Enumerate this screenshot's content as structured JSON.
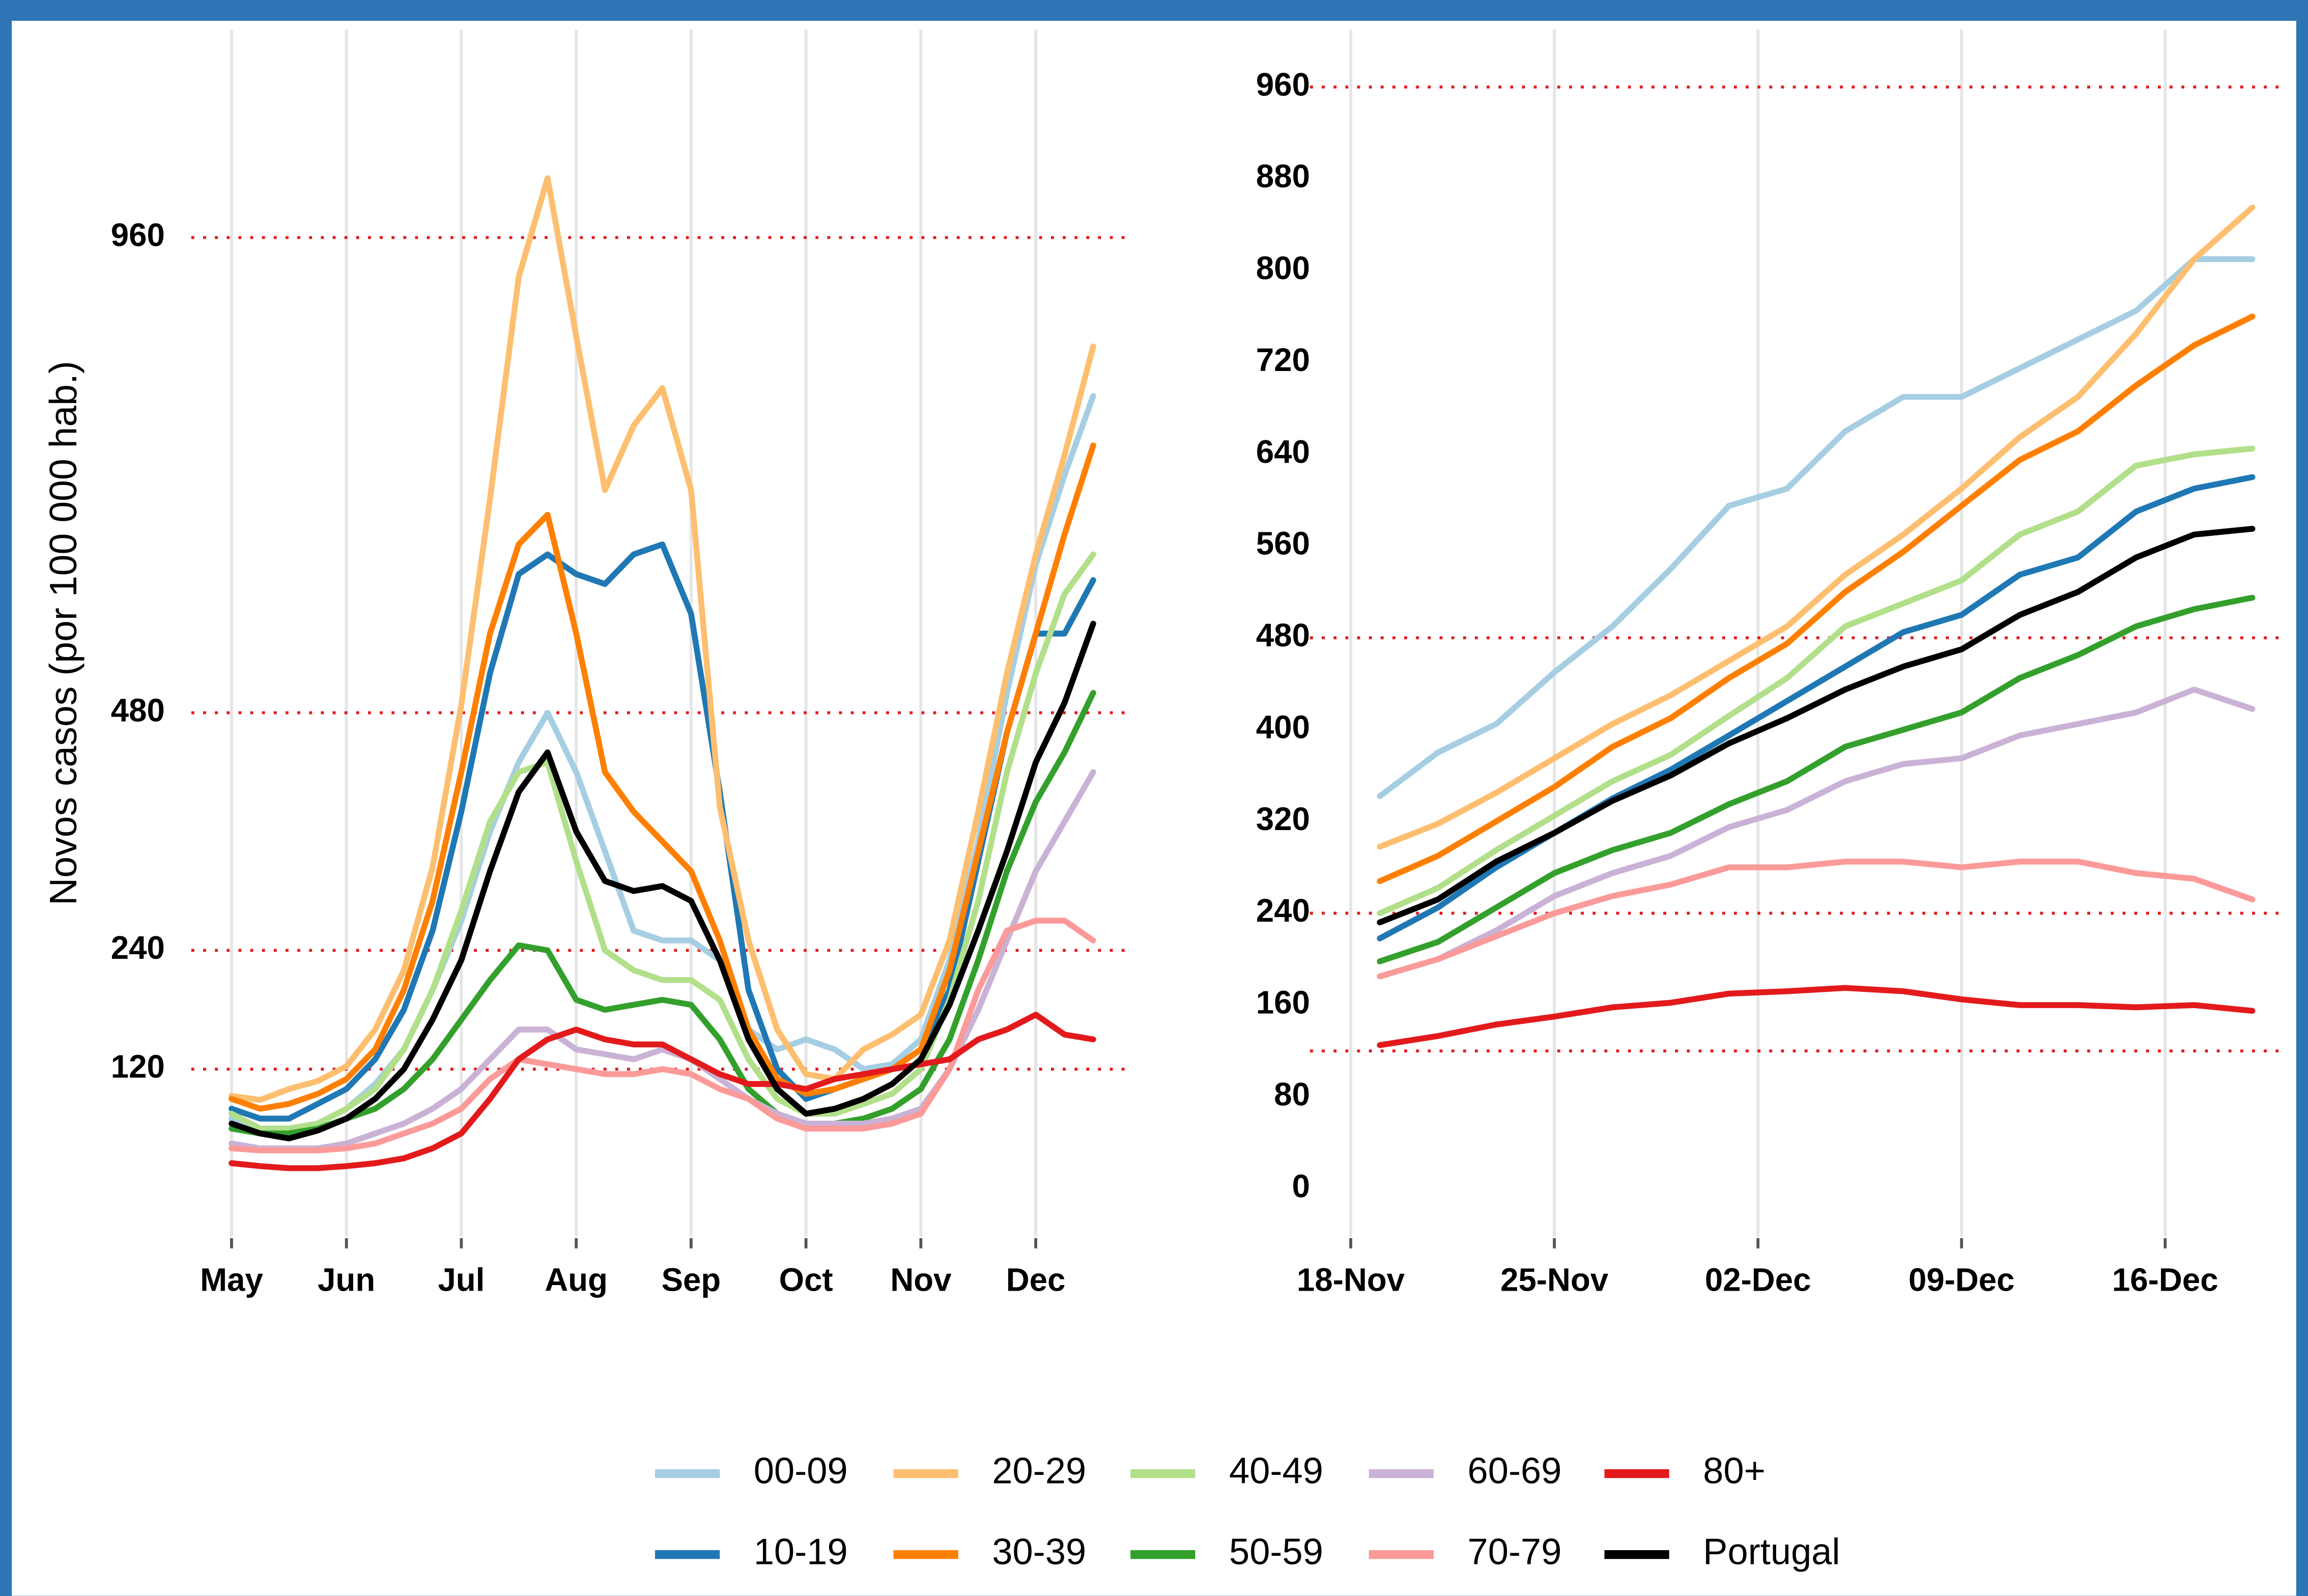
{
  "chart_data": [
    {
      "type": "line",
      "ylabel": "Novos casos (por 100 000 hab.)",
      "x": [
        0,
        0.25,
        0.5,
        0.75,
        1,
        1.25,
        1.5,
        1.75,
        2,
        2.25,
        2.5,
        2.75,
        3,
        3.25,
        3.5,
        3.75,
        4,
        4.25,
        4.5,
        4.75,
        5,
        5.25,
        5.5,
        5.75,
        6,
        6.25,
        6.5,
        6.75,
        7,
        7.25,
        7.5
      ],
      "xlim": [
        -0.35,
        7.85
      ],
      "xticks": [
        {
          "value": 0,
          "label": "May"
        },
        {
          "value": 1,
          "label": "Jun"
        },
        {
          "value": 2,
          "label": "Jul"
        },
        {
          "value": 3,
          "label": "Aug"
        },
        {
          "value": 4,
          "label": "Sep"
        },
        {
          "value": 5,
          "label": "Oct"
        },
        {
          "value": 6,
          "label": "Nov"
        },
        {
          "value": 7,
          "label": "Dec"
        }
      ],
      "ylim": [
        -12,
        1170
      ],
      "yticks": [
        120,
        240,
        480,
        960
      ],
      "ref_lines": [
        120,
        240,
        480,
        960
      ],
      "ref_color": "#e31a1c",
      "xgrid": true,
      "series": [
        {
          "name": "00-09",
          "color": "#a6cee3",
          "values": [
            70,
            60,
            60,
            65,
            80,
            105,
            140,
            200,
            270,
            360,
            430,
            480,
            420,
            340,
            260,
            250,
            250,
            230,
            160,
            140,
            150,
            140,
            120,
            125,
            150,
            230,
            350,
            500,
            630,
            720,
            800
          ]
        },
        {
          "name": "10-19",
          "color": "#1f78b4",
          "values": [
            80,
            70,
            70,
            85,
            100,
            130,
            180,
            260,
            380,
            520,
            620,
            640,
            620,
            610,
            640,
            650,
            580,
            400,
            200,
            120,
            90,
            100,
            110,
            120,
            140,
            200,
            330,
            460,
            560,
            560,
            614
          ]
        },
        {
          "name": "20-29",
          "color": "#fdbf6f",
          "values": [
            93,
            89,
            100,
            108,
            123,
            160,
            220,
            324,
            488,
            696,
            920,
            1020,
            860,
            705,
            770,
            808,
            705,
            385,
            250,
            160,
            115,
            110,
            140,
            155,
            175,
            250,
            380,
            520,
            640,
            740,
            850
          ]
        },
        {
          "name": "30-39",
          "color": "#ff7f00",
          "values": [
            90,
            80,
            85,
            95,
            110,
            140,
            200,
            290,
            420,
            560,
            650,
            680,
            560,
            420,
            380,
            350,
            320,
            250,
            160,
            110,
            95,
            100,
            110,
            120,
            140,
            220,
            340,
            460,
            560,
            660,
            750
          ]
        },
        {
          "name": "40-49",
          "color": "#b2df8a",
          "values": [
            75,
            60,
            60,
            65,
            80,
            100,
            140,
            200,
            280,
            370,
            420,
            430,
            330,
            240,
            220,
            210,
            210,
            190,
            130,
            90,
            75,
            75,
            85,
            95,
            120,
            190,
            290,
            420,
            520,
            600,
            640
          ]
        },
        {
          "name": "50-59",
          "color": "#33a02c",
          "values": [
            60,
            55,
            55,
            60,
            70,
            80,
            100,
            130,
            170,
            210,
            245,
            240,
            190,
            180,
            185,
            190,
            185,
            150,
            100,
            75,
            65,
            65,
            70,
            80,
            100,
            150,
            230,
            320,
            390,
            440,
            500
          ]
        },
        {
          "name": "60-69",
          "color": "#cab2d6",
          "values": [
            45,
            40,
            40,
            40,
            45,
            55,
            65,
            80,
            100,
            130,
            160,
            160,
            140,
            135,
            130,
            140,
            130,
            110,
            90,
            75,
            65,
            65,
            65,
            70,
            80,
            120,
            180,
            250,
            320,
            370,
            420
          ]
        },
        {
          "name": "70-79",
          "color": "#fb9a99",
          "values": [
            40,
            38,
            38,
            38,
            40,
            45,
            55,
            65,
            80,
            110,
            130,
            125,
            120,
            115,
            115,
            120,
            115,
            100,
            90,
            70,
            60,
            60,
            60,
            65,
            75,
            120,
            200,
            260,
            270,
            270,
            250
          ]
        },
        {
          "name": "80+",
          "color": "#e31a1c",
          "values": [
            25,
            22,
            20,
            20,
            22,
            25,
            30,
            40,
            55,
            90,
            130,
            150,
            160,
            150,
            145,
            145,
            130,
            115,
            105,
            105,
            100,
            110,
            115,
            120,
            125,
            130,
            150,
            160,
            175,
            155,
            150
          ]
        },
        {
          "name": "Portugal",
          "color": "#000000",
          "values": [
            65,
            55,
            50,
            58,
            70,
            90,
            120,
            170,
            230,
            320,
            400,
            440,
            360,
            310,
            300,
            305,
            290,
            230,
            150,
            100,
            75,
            80,
            90,
            105,
            130,
            185,
            260,
            340,
            430,
            490,
            570
          ]
        }
      ]
    },
    {
      "type": "line",
      "x": [
        1,
        3,
        5,
        7,
        9,
        11,
        13,
        15,
        17,
        19,
        21,
        23,
        25,
        27,
        29,
        31
      ],
      "xlim": [
        -1.4,
        32
      ],
      "xticks": [
        {
          "value": 0,
          "label": "18-Nov"
        },
        {
          "value": 7,
          "label": "25-Nov"
        },
        {
          "value": 14,
          "label": "02-Dec"
        },
        {
          "value": 21,
          "label": "09-Dec"
        },
        {
          "value": 28,
          "label": "16-Dec"
        }
      ],
      "ylim": [
        -29,
        1010
      ],
      "yticks": [
        0,
        80,
        160,
        240,
        320,
        400,
        480,
        560,
        640,
        720,
        800,
        880,
        960
      ],
      "ref_lines": [
        120,
        240,
        480,
        960
      ],
      "ref_color": "#e31a1c",
      "xgrid": true,
      "series": [
        {
          "name": "00-09",
          "color": "#a6cee3",
          "values": [
            342,
            380,
            405,
            450,
            490,
            540,
            595,
            610,
            660,
            690,
            690,
            715,
            740,
            765,
            810,
            810
          ]
        },
        {
          "name": "10-19",
          "color": "#1f78b4",
          "values": [
            218,
            245,
            280,
            310,
            340,
            365,
            395,
            425,
            455,
            485,
            500,
            535,
            550,
            590,
            610,
            620
          ]
        },
        {
          "name": "20-29",
          "color": "#fdbf6f",
          "values": [
            298,
            318,
            345,
            375,
            405,
            430,
            460,
            490,
            535,
            570,
            610,
            655,
            690,
            745,
            810,
            855
          ]
        },
        {
          "name": "30-39",
          "color": "#ff7f00",
          "values": [
            268,
            290,
            320,
            350,
            385,
            410,
            445,
            475,
            520,
            555,
            595,
            635,
            660,
            700,
            735,
            760
          ]
        },
        {
          "name": "40-49",
          "color": "#b2df8a",
          "values": [
            240,
            262,
            295,
            325,
            355,
            378,
            412,
            445,
            490,
            510,
            530,
            570,
            590,
            630,
            640,
            645
          ]
        },
        {
          "name": "50-59",
          "color": "#33a02c",
          "values": [
            198,
            215,
            245,
            275,
            295,
            310,
            335,
            355,
            385,
            400,
            415,
            445,
            465,
            490,
            505,
            515
          ]
        },
        {
          "name": "60-69",
          "color": "#cab2d6",
          "values": [
            185,
            200,
            225,
            255,
            275,
            290,
            315,
            330,
            355,
            370,
            375,
            395,
            405,
            415,
            435,
            418
          ]
        },
        {
          "name": "70-79",
          "color": "#fb9a99",
          "values": [
            185,
            200,
            220,
            240,
            255,
            265,
            280,
            280,
            285,
            285,
            280,
            285,
            285,
            275,
            270,
            252
          ]
        },
        {
          "name": "80+",
          "color": "#e31a1c",
          "values": [
            125,
            133,
            143,
            150,
            158,
            162,
            170,
            172,
            175,
            172,
            165,
            160,
            160,
            158,
            160,
            155
          ]
        },
        {
          "name": "Portugal",
          "color": "#000000",
          "values": [
            232,
            252,
            285,
            310,
            338,
            360,
            388,
            410,
            435,
            455,
            470,
            500,
            520,
            550,
            570,
            575
          ]
        }
      ]
    }
  ]
}
